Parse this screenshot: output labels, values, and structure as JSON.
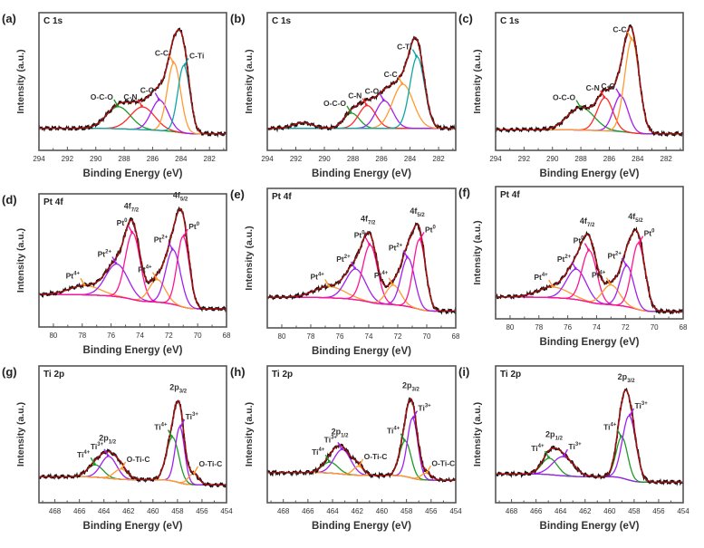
{
  "figure": {
    "xlabel": "Binding Energy (eV)",
    "ylabel": "Intensity (a.u.)"
  },
  "colors": {
    "experimental": "#111111",
    "fit": "#a01010",
    "background": "#9a9a9a"
  },
  "chart_data": [
    {
      "panel": "(a)",
      "title": "C 1s",
      "type": "line",
      "xlim": [
        294,
        280.8
      ],
      "xticks": [
        294,
        292,
        290,
        288,
        286,
        284,
        282
      ],
      "ylim": [
        0,
        1
      ],
      "baseline": [
        0.16,
        0.12
      ],
      "satellite": null,
      "components": [
        {
          "label": "O-C-O",
          "sup": "",
          "sub": "",
          "center": 288.4,
          "height": 0.16,
          "fwhm": 2.0,
          "color": "#1e9a2a"
        },
        {
          "label": "C-N",
          "sup": "",
          "sub": "",
          "center": 286.7,
          "height": 0.165,
          "fwhm": 2.0,
          "color": "#ff2a2a"
        },
        {
          "label": "C-O",
          "sup": "",
          "sub": "",
          "center": 285.5,
          "height": 0.22,
          "fwhm": 1.4,
          "color": "#a020f0"
        },
        {
          "label": "C-C",
          "sup": "",
          "sub": "",
          "center": 284.5,
          "height": 0.5,
          "fwhm": 1.1,
          "color": "#ff9a30"
        },
        {
          "label": "C-Ti",
          "sup": "",
          "sub": "",
          "center": 283.8,
          "height": 0.49,
          "fwhm": 1.0,
          "color": "#10a5a5"
        }
      ],
      "groups": []
    },
    {
      "panel": "(b)",
      "title": "C 1s",
      "type": "line",
      "xlim": [
        294,
        280.8
      ],
      "xticks": [
        294,
        292,
        290,
        288,
        286,
        284,
        282
      ],
      "ylim": [
        0,
        1
      ],
      "baseline": [
        0.16,
        0.16
      ],
      "satellite": {
        "center": 291.5,
        "height": 0.04,
        "fwhm": 1.6
      },
      "components": [
        {
          "label": "O-C-O",
          "sup": "",
          "sub": "",
          "center": 288.1,
          "height": 0.11,
          "fwhm": 1.3,
          "color": "#1e9a2a"
        },
        {
          "label": "C-N",
          "sup": "",
          "sub": "",
          "center": 287.0,
          "height": 0.165,
          "fwhm": 1.4,
          "color": "#ff2a2a"
        },
        {
          "label": "C-O",
          "sup": "",
          "sub": "",
          "center": 285.8,
          "height": 0.2,
          "fwhm": 1.4,
          "color": "#a020f0"
        },
        {
          "label": "C-C",
          "sup": "",
          "sub": "",
          "center": 284.5,
          "height": 0.32,
          "fwhm": 1.7,
          "color": "#ff9a30"
        },
        {
          "label": "C-Ti",
          "sup": "",
          "sub": "",
          "center": 283.5,
          "height": 0.52,
          "fwhm": 1.2,
          "color": "#10a5a5"
        }
      ],
      "groups": []
    },
    {
      "panel": "(c)",
      "title": "C 1s",
      "type": "line",
      "xlim": [
        294,
        280.8
      ],
      "xticks": [
        294,
        292,
        290,
        288,
        286,
        284,
        282
      ],
      "ylim": [
        0,
        1
      ],
      "baseline": [
        0.15,
        0.12
      ],
      "satellite": null,
      "components": [
        {
          "label": "O-C-O",
          "sup": "",
          "sub": "",
          "center": 288.0,
          "height": 0.165,
          "fwhm": 2.2,
          "color": "#1e9a2a"
        },
        {
          "label": "C-N",
          "sup": "",
          "sub": "",
          "center": 286.3,
          "height": 0.24,
          "fwhm": 1.3,
          "color": "#ff2a2a"
        },
        {
          "label": "C-O",
          "sup": "",
          "sub": "",
          "center": 285.2,
          "height": 0.26,
          "fwhm": 1.2,
          "color": "#a020f0"
        },
        {
          "label": "C-C",
          "sup": "",
          "sub": "",
          "center": 284.4,
          "height": 0.68,
          "fwhm": 1.2,
          "color": "#ff9a30"
        }
      ],
      "groups": []
    },
    {
      "panel": "(d)",
      "title": "Pt 4f",
      "type": "line",
      "xlim": [
        81,
        68
      ],
      "xticks": [
        80,
        78,
        76,
        74,
        72,
        70,
        68
      ],
      "ylim": [
        0,
        1
      ],
      "baseline": [
        0.245,
        0.136
      ],
      "satellite": null,
      "components": [
        {
          "label": "Pt",
          "sup": "4+",
          "sub": "",
          "center": 77.8,
          "height": 0.07,
          "fwhm": 2.5,
          "color": "#ff9a30"
        },
        {
          "label": "Pt",
          "sup": "2+",
          "sub": "",
          "center": 75.6,
          "height": 0.245,
          "fwhm": 1.8,
          "color": "#a020f0"
        },
        {
          "label": "Pt",
          "sup": "0",
          "sub": "",
          "center": 74.5,
          "height": 0.5,
          "fwhm": 1.2,
          "color": "#ff1493"
        },
        {
          "label": "Pt",
          "sup": "4+",
          "sub": "",
          "center": 72.8,
          "height": 0.17,
          "fwhm": 1.3,
          "color": "#ff9a30"
        },
        {
          "label": "Pt",
          "sup": "2+",
          "sub": "",
          "center": 71.7,
          "height": 0.41,
          "fwhm": 1.2,
          "color": "#a020f0"
        },
        {
          "label": "Pt",
          "sup": "0",
          "sub": "",
          "center": 71.0,
          "height": 0.53,
          "fwhm": 1.0,
          "color": "#ff1493"
        }
      ],
      "groups": [
        {
          "text": "4f",
          "sub": "7/2",
          "near": 74.6
        },
        {
          "text": "4f",
          "sub": "5/2",
          "near": 71.3
        }
      ]
    },
    {
      "panel": "(e)",
      "title": "Pt 4f",
      "type": "line",
      "xlim": [
        81,
        68
      ],
      "xticks": [
        80,
        78,
        76,
        74,
        72,
        70,
        68
      ],
      "ylim": [
        0,
        1
      ],
      "baseline": [
        0.22,
        0.12
      ],
      "satellite": null,
      "components": [
        {
          "label": "Pt",
          "sup": "4+",
          "sub": "",
          "center": 76.7,
          "height": 0.08,
          "fwhm": 2.5,
          "color": "#ff9a30"
        },
        {
          "label": "Pt",
          "sup": "2+",
          "sub": "",
          "center": 74.9,
          "height": 0.22,
          "fwhm": 1.6,
          "color": "#a020f0"
        },
        {
          "label": "Pt",
          "sup": "0",
          "sub": "",
          "center": 73.9,
          "height": 0.41,
          "fwhm": 1.2,
          "color": "#ff1493"
        },
        {
          "label": "Pt",
          "sup": "4+",
          "sub": "",
          "center": 72.3,
          "height": 0.14,
          "fwhm": 1.2,
          "color": "#ff9a30"
        },
        {
          "label": "Pt",
          "sup": "2+",
          "sub": "",
          "center": 71.3,
          "height": 0.35,
          "fwhm": 1.1,
          "color": "#a020f0"
        },
        {
          "label": "Pt",
          "sup": "0",
          "sub": "",
          "center": 70.5,
          "height": 0.5,
          "fwhm": 1.0,
          "color": "#ff1493"
        }
      ],
      "groups": [
        {
          "text": "4f",
          "sub": "7/2",
          "near": 74.0
        },
        {
          "text": "4f",
          "sub": "5/2",
          "near": 70.7
        }
      ]
    },
    {
      "panel": "(f)",
      "title": "Pt 4f",
      "type": "line",
      "xlim": [
        81,
        68
      ],
      "xticks": [
        80,
        78,
        76,
        74,
        72,
        70,
        68
      ],
      "ylim": [
        0,
        1
      ],
      "baseline": [
        0.165,
        0.055
      ],
      "satellite": null,
      "components": [
        {
          "label": "Pt",
          "sup": "4+",
          "sub": "",
          "center": 77.0,
          "height": 0.08,
          "fwhm": 2.5,
          "color": "#ff9a30"
        },
        {
          "label": "Pt",
          "sup": "2+",
          "sub": "",
          "center": 75.4,
          "height": 0.23,
          "fwhm": 1.6,
          "color": "#a020f0"
        },
        {
          "label": "Pt",
          "sup": "0",
          "sub": "",
          "center": 74.5,
          "height": 0.39,
          "fwhm": 1.2,
          "color": "#ff1493"
        },
        {
          "label": "Pt",
          "sup": "4+",
          "sub": "",
          "center": 73.0,
          "height": 0.15,
          "fwhm": 1.4,
          "color": "#ff9a30"
        },
        {
          "label": "Pt",
          "sup": "2+",
          "sub": "",
          "center": 71.9,
          "height": 0.31,
          "fwhm": 1.1,
          "color": "#a020f0"
        },
        {
          "label": "Pt",
          "sup": "0",
          "sub": "",
          "center": 71.1,
          "height": 0.5,
          "fwhm": 1.1,
          "color": "#ff1493"
        }
      ],
      "groups": [
        {
          "text": "4f",
          "sub": "7/2",
          "near": 74.7
        },
        {
          "text": "4f",
          "sub": "5/2",
          "near": 71.4
        }
      ]
    },
    {
      "panel": "(g)",
      "title": "Ti 2p",
      "type": "line",
      "xlim": [
        469.3,
        454
      ],
      "xticks": [
        468,
        466,
        464,
        462,
        460,
        458,
        456,
        454
      ],
      "ylim": [
        0,
        1
      ],
      "baseline": [
        0.19,
        0.13
      ],
      "satellite": null,
      "components": [
        {
          "label": "Ti",
          "sup": "4+",
          "sub": "",
          "center": 464.7,
          "height": 0.09,
          "fwhm": 1.5,
          "color": "#1e9a2a"
        },
        {
          "label": "Ti",
          "sup": "3+",
          "sub": "",
          "center": 463.6,
          "height": 0.16,
          "fwhm": 1.5,
          "color": "#a020f0"
        },
        {
          "label": "O-Ti-C",
          "sup": "",
          "sub": "",
          "center": 462.6,
          "height": 0.075,
          "fwhm": 1.3,
          "color": "#ff9a30"
        },
        {
          "label": "Ti",
          "sup": "4+",
          "sub": "",
          "center": 458.4,
          "height": 0.32,
          "fwhm": 1.2,
          "color": "#1e9a2a"
        },
        {
          "label": "Ti",
          "sup": "3+",
          "sub": "",
          "center": 457.8,
          "height": 0.41,
          "fwhm": 0.9,
          "color": "#a020f0"
        },
        {
          "label": "O-Ti-C",
          "sup": "",
          "sub": "",
          "center": 456.7,
          "height": 0.08,
          "fwhm": 1.0,
          "color": "#ff9a30"
        }
      ],
      "groups": [
        {
          "text": "2p",
          "sub": "1/2",
          "near": 463.6
        },
        {
          "text": "2p",
          "sub": "3/2",
          "near": 458.0
        }
      ]
    },
    {
      "panel": "(h)",
      "title": "Ti 2p",
      "type": "line",
      "xlim": [
        469.3,
        454
      ],
      "xticks": [
        468,
        466,
        464,
        462,
        460,
        458,
        456,
        454
      ],
      "ylim": [
        0,
        1
      ],
      "baseline": [
        0.22,
        0.165
      ],
      "satellite": null,
      "components": [
        {
          "label": "Ti",
          "sup": "4+",
          "sub": "",
          "center": 464.2,
          "height": 0.08,
          "fwhm": 1.5,
          "color": "#1e9a2a"
        },
        {
          "label": "Ti",
          "sup": "3+",
          "sub": "",
          "center": 463.2,
          "height": 0.18,
          "fwhm": 1.6,
          "color": "#a020f0"
        },
        {
          "label": "O-Ti-C",
          "sup": "",
          "sub": "",
          "center": 461.9,
          "height": 0.065,
          "fwhm": 1.0,
          "color": "#ff9a30"
        },
        {
          "label": "Ti",
          "sup": "4+",
          "sub": "",
          "center": 458.1,
          "height": 0.26,
          "fwhm": 1.1,
          "color": "#1e9a2a"
        },
        {
          "label": "Ti",
          "sup": "3+",
          "sub": "",
          "center": 457.5,
          "height": 0.44,
          "fwhm": 1.0,
          "color": "#a020f0"
        },
        {
          "label": "O-Ti-C",
          "sup": "",
          "sub": "",
          "center": 456.4,
          "height": 0.05,
          "fwhm": 1.0,
          "color": "#ff9a30"
        }
      ],
      "groups": [
        {
          "text": "2p",
          "sub": "1/2",
          "near": 463.3
        },
        {
          "text": "2p",
          "sub": "3/2",
          "near": 457.7
        }
      ]
    },
    {
      "panel": "(i)",
      "title": "Ti 2p",
      "type": "line",
      "xlim": [
        469.3,
        454
      ],
      "xticks": [
        468,
        466,
        464,
        462,
        460,
        458,
        456,
        454
      ],
      "ylim": [
        0,
        1
      ],
      "baseline": [
        0.21,
        0.15
      ],
      "satellite": null,
      "components": [
        {
          "label": "Ti",
          "sup": "4+",
          "sub": "",
          "center": 464.9,
          "height": 0.12,
          "fwhm": 1.5,
          "color": "#1e9a2a"
        },
        {
          "label": "Ti",
          "sup": "3+",
          "sub": "",
          "center": 463.8,
          "height": 0.14,
          "fwhm": 2.0,
          "color": "#a020f0"
        },
        {
          "label": "Ti",
          "sup": "4+",
          "sub": "",
          "center": 459.0,
          "height": 0.3,
          "fwhm": 1.1,
          "color": "#1e9a2a"
        },
        {
          "label": "Ti",
          "sup": "3+",
          "sub": "",
          "center": 458.4,
          "height": 0.47,
          "fwhm": 1.3,
          "color": "#a020f0"
        }
      ],
      "groups": [
        {
          "text": "2p",
          "sub": "1/2",
          "near": 464.4
        },
        {
          "text": "2p",
          "sub": "3/2",
          "near": 458.7
        }
      ]
    }
  ]
}
